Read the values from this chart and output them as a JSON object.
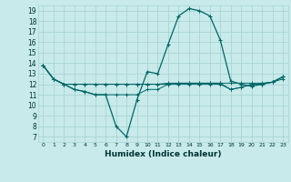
{
  "xlabel": "Humidex (Indice chaleur)",
  "ylabel": "",
  "background_color": "#c8eaea",
  "grid_color": "#aad4d4",
  "line_color": "#006666",
  "xlim": [
    -0.5,
    23.5
  ],
  "ylim": [
    6.5,
    19.5
  ],
  "xticks": [
    0,
    1,
    2,
    3,
    4,
    5,
    6,
    7,
    8,
    9,
    10,
    11,
    12,
    13,
    14,
    15,
    16,
    17,
    18,
    19,
    20,
    21,
    22,
    23
  ],
  "yticks": [
    7,
    8,
    9,
    10,
    11,
    12,
    13,
    14,
    15,
    16,
    17,
    18,
    19
  ],
  "series": [
    [
      13.8,
      12.5,
      12.0,
      11.5,
      11.3,
      11.0,
      11.0,
      8.0,
      7.0,
      10.5,
      13.2,
      13.0,
      15.8,
      18.5,
      19.2,
      19.0,
      18.5,
      16.2,
      12.3,
      12.0,
      11.8,
      12.0,
      12.2,
      12.7
    ],
    [
      13.8,
      12.5,
      12.0,
      12.0,
      12.0,
      12.0,
      12.0,
      12.0,
      12.0,
      12.0,
      12.0,
      12.0,
      12.1,
      12.1,
      12.1,
      12.1,
      12.1,
      12.1,
      12.1,
      12.1,
      12.1,
      12.1,
      12.2,
      12.5
    ],
    [
      13.8,
      12.5,
      12.0,
      12.0,
      12.0,
      12.0,
      12.0,
      12.0,
      12.0,
      12.0,
      12.0,
      12.0,
      12.0,
      12.0,
      12.0,
      12.0,
      12.0,
      12.0,
      11.5,
      11.7,
      12.0,
      12.0,
      12.2,
      12.7
    ],
    [
      13.8,
      12.5,
      12.0,
      11.5,
      11.3,
      11.0,
      11.0,
      11.0,
      11.0,
      11.0,
      11.5,
      11.5,
      12.0,
      12.1,
      12.1,
      12.1,
      12.1,
      12.1,
      11.5,
      11.7,
      12.0,
      12.0,
      12.2,
      12.7
    ]
  ]
}
